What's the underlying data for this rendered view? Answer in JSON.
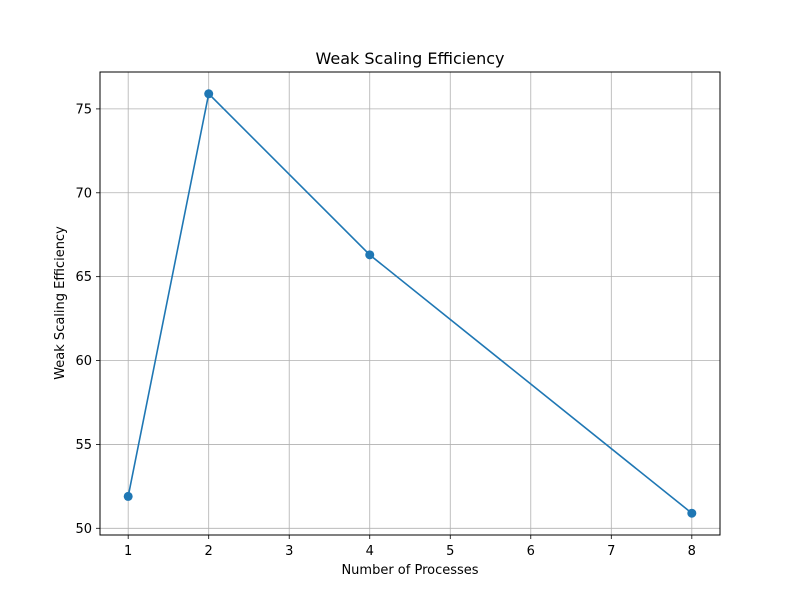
{
  "chart_data": {
    "type": "line",
    "title": "Weak Scaling Efficiency",
    "xlabel": "Number of Processes",
    "ylabel": "Weak Scaling Efficiency",
    "x": [
      1,
      2,
      4,
      8
    ],
    "series": [
      {
        "values": [
          51.9,
          75.9,
          66.3,
          50.9
        ],
        "color": "#1f77b4"
      }
    ],
    "xlim": [
      0.65,
      8.35
    ],
    "ylim": [
      49.6,
      77.2
    ],
    "xticks": [
      "1",
      "2",
      "3",
      "4",
      "5",
      "6",
      "7",
      "8"
    ],
    "yticks": [
      "50",
      "55",
      "60",
      "65",
      "70",
      "75"
    ],
    "grid": true,
    "marker": "circle"
  }
}
